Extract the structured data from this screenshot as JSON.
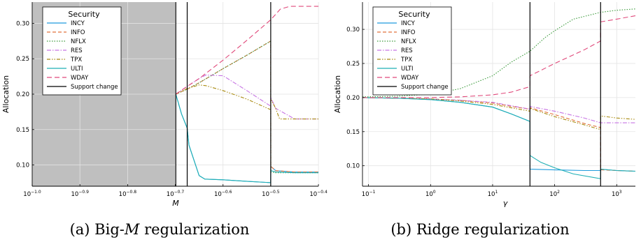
{
  "captions": [
    {
      "prefix": "(a) Big-",
      "math": "M",
      "suffix": " regularization"
    },
    {
      "prefix": "(b) Ridge regularization",
      "math": "",
      "suffix": ""
    }
  ],
  "chart_data": [
    {
      "type": "line",
      "ylabel": "Allocation",
      "xlabel": "M",
      "xscale": "log",
      "xlim": [
        0.1,
        0.398
      ],
      "ylim": [
        0.07,
        0.33
      ],
      "x_ticks": [
        {
          "b": "10",
          "e": "−1.0"
        },
        {
          "b": "10",
          "e": "−0.9"
        },
        {
          "b": "10",
          "e": "−0.8"
        },
        {
          "b": "10",
          "e": "−0.7"
        },
        {
          "b": "10",
          "e": "−0.6"
        },
        {
          "b": "10",
          "e": "−0.5"
        },
        {
          "b": "10",
          "e": "−0.4"
        }
      ],
      "x_tick_values": [
        0.1,
        0.1259,
        0.1585,
        0.1995,
        0.2512,
        0.3162,
        0.3981
      ],
      "y_ticks": [
        "0.10",
        "0.15",
        "0.20",
        "0.25",
        "0.30"
      ],
      "y_tick_values": [
        0.1,
        0.15,
        0.2,
        0.25,
        0.3
      ],
      "grid": true,
      "infeasible_region": [
        0.1,
        0.2
      ],
      "support_changes": [
        0.2,
        0.2113,
        0.3162
      ],
      "legend": {
        "title": "Security",
        "position": "top-left"
      },
      "series": [
        {
          "name": "INCY",
          "color": "#1f9bdd",
          "dash": "",
          "x": [
            0.2,
            0.2056,
            0.2113,
            0.2131,
            0.2238,
            0.2301,
            0.2512,
            0.2812,
            0.3162,
            0.3164,
            0.3238,
            0.3548,
            0.3981
          ],
          "y": [
            0.2,
            0.172,
            0.152,
            0.128,
            0.085,
            0.08,
            0.079,
            0.077,
            0.075,
            0.098,
            0.092,
            0.09,
            0.09
          ]
        },
        {
          "name": "INFO",
          "color": "#e2703a",
          "dash": "5,3",
          "x": [
            0.2,
            0.2113,
            0.2238,
            0.2512,
            0.2818,
            0.3162,
            0.3164,
            0.3238,
            0.3548,
            0.3981
          ],
          "y": [
            0.2,
            0.207,
            0.216,
            0.236,
            0.255,
            0.275,
            0.098,
            0.092,
            0.09,
            0.09
          ]
        },
        {
          "name": "NFLX",
          "color": "#3b9a3b",
          "dash": "1.5,2",
          "x": [
            0.2,
            0.2113,
            0.2238,
            0.2512,
            0.2818,
            0.3162,
            0.3164,
            0.3238,
            0.3548,
            0.3981
          ],
          "y": [
            0.2,
            0.207,
            0.216,
            0.236,
            0.255,
            0.275,
            0.09,
            0.089,
            0.089,
            0.089
          ]
        },
        {
          "name": "RES",
          "color": "#c774e4",
          "dash": "6,2,1.5,2",
          "x": [
            0.2,
            0.2113,
            0.2238,
            0.2312,
            0.2512,
            0.2818,
            0.3162,
            0.3164,
            0.3238,
            0.3548,
            0.3981
          ],
          "y": [
            0.2,
            0.211,
            0.222,
            0.227,
            0.226,
            0.205,
            0.183,
            0.195,
            0.18,
            0.165,
            0.165
          ]
        },
        {
          "name": "TPX",
          "color": "#a88a0f",
          "dash": "5,2,1.5,2,1.5,2",
          "x": [
            0.2,
            0.2113,
            0.2238,
            0.2312,
            0.2512,
            0.2818,
            0.3162,
            0.3164,
            0.3238,
            0.33,
            0.3548,
            0.3981
          ],
          "y": [
            0.2,
            0.208,
            0.213,
            0.212,
            0.205,
            0.193,
            0.178,
            0.193,
            0.18,
            0.165,
            0.165,
            0.165
          ]
        },
        {
          "name": "ULTI",
          "color": "#1fafb4",
          "dash": "",
          "x": [
            0.2,
            0.2056,
            0.2113,
            0.2131,
            0.2238,
            0.2301,
            0.2512,
            0.2812,
            0.3162,
            0.3164,
            0.3238,
            0.3548,
            0.3981
          ],
          "y": [
            0.2,
            0.172,
            0.152,
            0.128,
            0.085,
            0.08,
            0.079,
            0.077,
            0.075,
            0.092,
            0.09,
            0.089,
            0.089
          ]
        },
        {
          "name": "WDAY",
          "color": "#e0487a",
          "dash": "7,4",
          "x": [
            0.2,
            0.2113,
            0.2238,
            0.2512,
            0.2818,
            0.3162,
            0.3311,
            0.3467,
            0.3981
          ],
          "y": [
            0.2,
            0.211,
            0.222,
            0.248,
            0.276,
            0.305,
            0.32,
            0.324,
            0.324
          ]
        },
        {
          "name": "Support change",
          "color": "#000000",
          "dash": "",
          "x": [],
          "y": []
        }
      ]
    },
    {
      "type": "line",
      "ylabel": "Allocation",
      "xlabel": "γ",
      "xscale": "log",
      "xlim": [
        0.08,
        2000
      ],
      "ylim": [
        0.07,
        0.34
      ],
      "x_ticks": [
        {
          "b": "10",
          "e": "−1"
        },
        {
          "b": "10",
          "e": "0"
        },
        {
          "b": "10",
          "e": "1"
        },
        {
          "b": "10",
          "e": "2"
        },
        {
          "b": "10",
          "e": "3"
        }
      ],
      "x_tick_values": [
        0.1,
        1,
        10,
        100,
        1000
      ],
      "y_ticks": [
        "0.10",
        "0.15",
        "0.20",
        "0.25",
        "0.30"
      ],
      "y_tick_values": [
        0.1,
        0.15,
        0.2,
        0.25,
        0.3
      ],
      "grid": true,
      "support_changes": [
        40,
        550
      ],
      "legend": {
        "title": "Security",
        "position": "top-left"
      },
      "series": [
        {
          "name": "INCY",
          "color": "#1f9bdd",
          "dash": "",
          "x": [
            0.08,
            0.3,
            1,
            3,
            10,
            20,
            40,
            40.1,
            100,
            300,
            550,
            551,
            1000,
            2000
          ],
          "y": [
            0.2,
            0.199,
            0.197,
            0.193,
            0.186,
            0.176,
            0.165,
            0.095,
            0.094,
            0.093,
            0.093,
            0.095,
            0.093,
            0.092
          ]
        },
        {
          "name": "INFO",
          "color": "#e2703a",
          "dash": "5,3",
          "x": [
            0.08,
            0.3,
            1,
            3,
            10,
            20,
            40,
            40.1,
            100,
            300,
            550,
            551,
            1000,
            2000
          ],
          "y": [
            0.2,
            0.199,
            0.198,
            0.196,
            0.192,
            0.187,
            0.183,
            0.185,
            0.175,
            0.162,
            0.156,
            0.094,
            0.093,
            0.092
          ]
        },
        {
          "name": "NFLX",
          "color": "#3b9a3b",
          "dash": "1.5,2",
          "x": [
            0.08,
            0.3,
            1,
            3,
            10,
            20,
            40,
            70,
            100,
            200,
            550,
            1000,
            2000
          ],
          "y": [
            0.201,
            0.202,
            0.205,
            0.213,
            0.232,
            0.252,
            0.268,
            0.288,
            0.298,
            0.315,
            0.325,
            0.328,
            0.33
          ]
        },
        {
          "name": "RES",
          "color": "#c774e4",
          "dash": "6,2,1.5,2",
          "x": [
            0.08,
            0.3,
            1,
            3,
            10,
            20,
            40,
            40.1,
            100,
            300,
            550,
            1000,
            2000
          ],
          "y": [
            0.2,
            0.199,
            0.198,
            0.196,
            0.193,
            0.188,
            0.183,
            0.187,
            0.18,
            0.17,
            0.163,
            0.163,
            0.163
          ]
        },
        {
          "name": "TPX",
          "color": "#a88a0f",
          "dash": "5,2,1.5,2,1.5,2",
          "x": [
            0.08,
            0.3,
            1,
            3,
            10,
            20,
            40,
            40.1,
            100,
            300,
            550,
            551,
            1000,
            2000
          ],
          "y": [
            0.2,
            0.199,
            0.198,
            0.195,
            0.19,
            0.185,
            0.18,
            0.184,
            0.172,
            0.16,
            0.153,
            0.173,
            0.17,
            0.168
          ]
        },
        {
          "name": "ULTI",
          "color": "#1fafb4",
          "dash": "",
          "x": [
            0.08,
            0.3,
            1,
            3,
            10,
            20,
            40,
            40.1,
            60,
            100,
            200,
            550,
            551,
            1000,
            2000
          ],
          "y": [
            0.2,
            0.199,
            0.197,
            0.193,
            0.186,
            0.176,
            0.165,
            0.115,
            0.105,
            0.097,
            0.088,
            0.081,
            0.095,
            0.093,
            0.092
          ]
        },
        {
          "name": "WDAY",
          "color": "#e0487a",
          "dash": "7,4",
          "x": [
            0.08,
            0.3,
            1,
            3,
            10,
            20,
            40,
            40.1,
            100,
            300,
            550,
            551,
            1000,
            2000
          ],
          "y": [
            0.2,
            0.2,
            0.2,
            0.201,
            0.204,
            0.208,
            0.216,
            0.232,
            0.25,
            0.27,
            0.283,
            0.311,
            0.315,
            0.32
          ]
        },
        {
          "name": "Support change",
          "color": "#000000",
          "dash": "",
          "x": [],
          "y": []
        }
      ]
    }
  ]
}
